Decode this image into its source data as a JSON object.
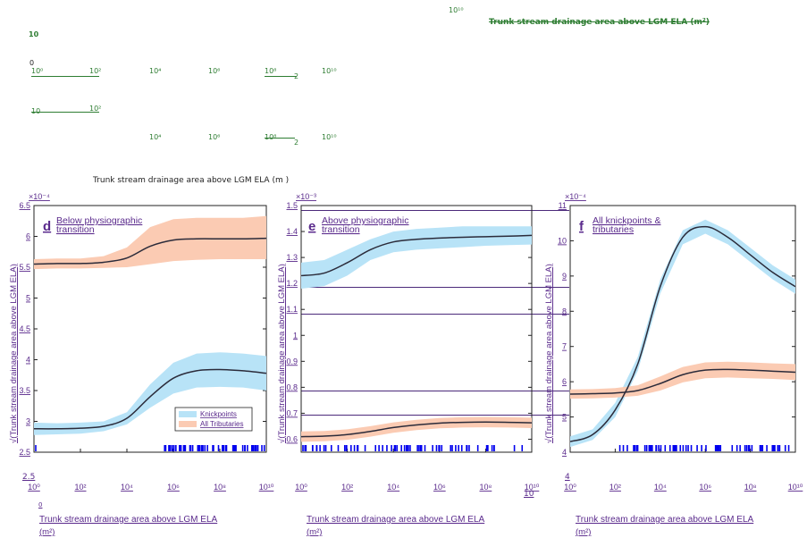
{
  "artifacts": {
    "top_right_exp": "10¹⁰",
    "top_title_struck": "Trunk stream drainage area above LGM ELA (m²)",
    "mid_label": "Trunk stream drainage area above LGM ELA (m",
    "mid_label_close": ")",
    "ghost_row1": [
      "10",
      "0",
      "10⁰",
      "10²",
      "10⁴",
      "10⁶",
      "10⁸",
      "2",
      "10¹⁰"
    ],
    "ghost_row2": [
      "10",
      "10²"
    ],
    "ghost_row3": [
      "10⁴",
      "10⁶",
      "10⁸",
      "2",
      "10¹⁰"
    ],
    "stray_low": "2.5",
    "stray_zero": "0",
    "stray_four": "4",
    "stray_ten": "10"
  },
  "colors": {
    "knickpoints_fill": "#b8e3f7",
    "tributaries_fill": "#fbcbb3",
    "curve": "#2b2b3a",
    "rug": "#0000ee",
    "label": "#5a2a8c"
  },
  "chart_data": [
    {
      "type": "line",
      "panel": "d",
      "panel_title": "Below physiographic transition",
      "y_multiplier": "×10⁻⁴",
      "xlabel": "Trunk stream drainage area above LGM ELA (m²)",
      "ylabel": "√(Trunk stream drainage area above LGM ELA)",
      "x_scale": "log",
      "xlim": [
        1,
        10000000000.0
      ],
      "ylim": [
        2.5,
        6.5
      ],
      "x_ticks": [
        "10⁰",
        "10²",
        "10⁴",
        "10⁶",
        "10⁸",
        "10¹⁰"
      ],
      "y_ticks": [
        "2.5",
        "3",
        "3.5",
        "4",
        "4.5",
        "5",
        "5.5",
        "6",
        "6.5"
      ],
      "series": [
        {
          "name": "Knickpoints",
          "x": [
            1,
            10,
            100,
            1000,
            10000,
            100000,
            1000000,
            10000000,
            100000000,
            1000000000,
            10000000000
          ],
          "y": [
            2.88,
            2.88,
            2.89,
            2.92,
            3.05,
            3.4,
            3.7,
            3.82,
            3.84,
            3.82,
            3.78
          ],
          "lower": [
            2.78,
            2.79,
            2.8,
            2.84,
            2.95,
            3.22,
            3.45,
            3.55,
            3.56,
            3.55,
            3.5
          ],
          "upper": [
            2.98,
            2.97,
            2.98,
            3.0,
            3.15,
            3.6,
            3.95,
            4.1,
            4.12,
            4.1,
            4.06
          ]
        },
        {
          "name": "All Tributaries",
          "x": [
            1,
            10,
            100,
            1000,
            10000,
            100000,
            1000000,
            10000000,
            100000000,
            1000000000,
            10000000000
          ],
          "y": [
            5.55,
            5.56,
            5.56,
            5.58,
            5.65,
            5.84,
            5.94,
            5.96,
            5.96,
            5.96,
            5.97
          ],
          "lower": [
            5.47,
            5.48,
            5.48,
            5.49,
            5.5,
            5.55,
            5.6,
            5.62,
            5.63,
            5.63,
            5.63
          ],
          "upper": [
            5.63,
            5.64,
            5.64,
            5.68,
            5.82,
            6.15,
            6.28,
            6.3,
            6.3,
            6.3,
            6.33
          ]
        }
      ],
      "legend": {
        "placement": "bottom-right",
        "entries": [
          "Knickpoints",
          "All Tributaries"
        ]
      }
    },
    {
      "type": "line",
      "panel": "e",
      "panel_title": "Above physiographic transition",
      "y_multiplier": "×10⁻³",
      "xlabel": "Trunk stream drainage area above LGM ELA (m²)",
      "ylabel": "√(Trunk stream drainage area above LGM ELA)",
      "x_scale": "log",
      "xlim": [
        1,
        10000000000.0
      ],
      "ylim": [
        0.55,
        1.5
      ],
      "x_ticks": [
        "10⁰",
        "10²",
        "10⁴",
        "10⁶",
        "10⁸",
        "10¹⁰"
      ],
      "y_ticks": [
        "0.6",
        "0.7",
        "0.8",
        "0.9",
        "1",
        "1.1",
        "1.2",
        "1.3",
        "1.4",
        "1.5"
      ],
      "series": [
        {
          "name": "Knickpoints",
          "x": [
            1,
            10,
            100,
            1000,
            10000,
            100000,
            1000000,
            10000000,
            100000000,
            1000000000,
            10000000000
          ],
          "y": [
            1.23,
            1.24,
            1.28,
            1.33,
            1.36,
            1.37,
            1.375,
            1.378,
            1.38,
            1.382,
            1.385
          ],
          "lower": [
            1.18,
            1.19,
            1.23,
            1.29,
            1.32,
            1.33,
            1.335,
            1.34,
            1.345,
            1.348,
            1.35
          ],
          "upper": [
            1.28,
            1.29,
            1.33,
            1.37,
            1.4,
            1.41,
            1.415,
            1.42,
            1.42,
            1.42,
            1.42
          ]
        },
        {
          "name": "All Tributaries",
          "x": [
            1,
            10,
            100,
            1000,
            10000,
            100000,
            1000000,
            10000000,
            100000000,
            1000000000,
            10000000000
          ],
          "y": [
            0.61,
            0.612,
            0.618,
            0.63,
            0.645,
            0.655,
            0.662,
            0.665,
            0.666,
            0.665,
            0.663
          ],
          "lower": [
            0.59,
            0.592,
            0.598,
            0.61,
            0.625,
            0.635,
            0.642,
            0.645,
            0.646,
            0.645,
            0.643
          ],
          "upper": [
            0.63,
            0.632,
            0.638,
            0.65,
            0.665,
            0.675,
            0.682,
            0.685,
            0.686,
            0.685,
            0.683
          ]
        }
      ]
    },
    {
      "type": "line",
      "panel": "f",
      "panel_title": "All knickpoints & tributaries",
      "y_multiplier": "×10⁻⁴",
      "xlabel": "Trunk stream drainage area above LGM ELA (m²)",
      "ylabel": "√(Trunk stream drainage area above LGM ELA)",
      "x_scale": "log",
      "xlim": [
        1,
        10000000000.0
      ],
      "ylim": [
        4,
        11
      ],
      "x_ticks": [
        "10⁰",
        "10²",
        "10⁴",
        "10⁶",
        "10⁸",
        "10¹⁰"
      ],
      "y_ticks": [
        "4",
        "5",
        "6",
        "7",
        "8",
        "9",
        "10",
        "11"
      ],
      "series": [
        {
          "name": "Knickpoints",
          "x": [
            1,
            10,
            100,
            1000,
            10000,
            100000,
            1000000,
            10000000,
            100000000,
            1000000000,
            10000000000
          ],
          "y": [
            4.3,
            4.5,
            5.2,
            6.5,
            8.7,
            10.1,
            10.4,
            10.1,
            9.6,
            9.1,
            8.7
          ],
          "lower": [
            4.15,
            4.35,
            5.0,
            6.3,
            8.5,
            9.9,
            10.2,
            9.9,
            9.4,
            8.9,
            8.5
          ],
          "upper": [
            4.45,
            4.65,
            5.4,
            6.7,
            8.9,
            10.3,
            10.6,
            10.3,
            9.8,
            9.3,
            8.9
          ]
        },
        {
          "name": "All Tributaries",
          "x": [
            1,
            10,
            100,
            1000,
            10000,
            100000,
            1000000,
            10000000,
            100000000,
            1000000000,
            10000000000
          ],
          "y": [
            5.65,
            5.66,
            5.68,
            5.75,
            5.95,
            6.2,
            6.33,
            6.35,
            6.33,
            6.3,
            6.27
          ],
          "lower": [
            5.52,
            5.53,
            5.55,
            5.6,
            5.75,
            5.98,
            6.1,
            6.12,
            6.1,
            6.08,
            6.05
          ],
          "upper": [
            5.78,
            5.79,
            5.82,
            5.9,
            6.15,
            6.42,
            6.55,
            6.57,
            6.55,
            6.52,
            6.5
          ]
        }
      ]
    }
  ]
}
